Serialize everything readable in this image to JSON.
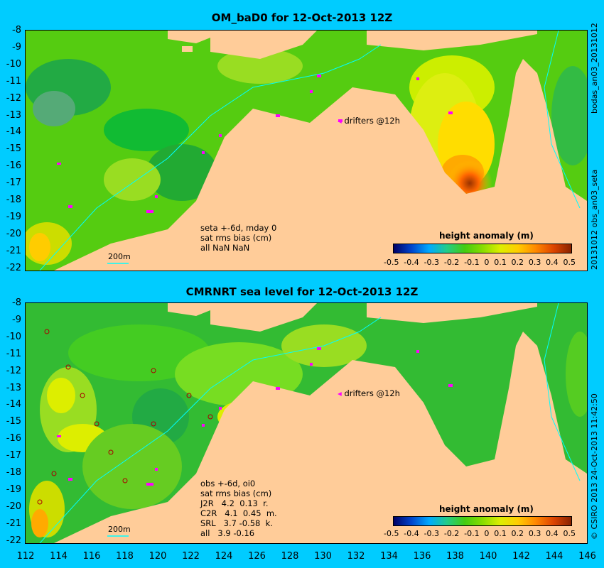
{
  "panel1": {
    "title": "OM_baD0 for 12-Oct-2013 12Z",
    "y_ticks": [
      "-8",
      "-9",
      "-10",
      "-11",
      "-12",
      "-13",
      "-14",
      "-15",
      "-16",
      "-17",
      "-18",
      "-19",
      "-20",
      "-21",
      "-22"
    ],
    "info_lines": [
      "seta +-6d, mday 0",
      "sat rms bias (cm)",
      "all NaN NaN"
    ],
    "drifters_label": "drifters @12h",
    "scale_label": "200m",
    "legend_title": "height anomaly (m)",
    "legend_ticks": [
      "-0.5",
      "-0.4",
      "-0.3",
      "-0.2",
      "-0.1",
      "0",
      "0.1",
      "0.2",
      "0.3",
      "0.4",
      "0.5"
    ],
    "side_top": "bodas_an03_20131012",
    "side_bottom": "20131012 obs_an03_seta"
  },
  "panel2": {
    "title": "CMRNRT sea level  for 12-Oct-2013 12Z",
    "y_ticks": [
      "-8",
      "-9",
      "-10",
      "-11",
      "-12",
      "-13",
      "-14",
      "-15",
      "-16",
      "-17",
      "-18",
      "-19",
      "-20",
      "-21",
      "-22"
    ],
    "info_lines": [
      "obs +-6d, oi0",
      "sat rms bias (cm)",
      "J2R   4.2  0.13  r.",
      "C2R   4.1  0.45  m.",
      "SRL   3.7 -0.58  k.",
      "all   3.9 -0.16"
    ],
    "drifters_label": "drifters @12h",
    "scale_label": "200m",
    "legend_title": "height anomaly (m)",
    "legend_ticks": [
      "-0.5",
      "-0.4",
      "-0.3",
      "-0.2",
      "-0.1",
      "0",
      "0.1",
      "0.2",
      "0.3",
      "0.4",
      "0.5"
    ],
    "side_text": "© CSIRO  2013    24-Oct-2013 11:42:50"
  },
  "x_ticks": [
    "112",
    "114",
    "116",
    "118",
    "120",
    "122",
    "124",
    "126",
    "128",
    "130",
    "132",
    "134",
    "136",
    "138",
    "140",
    "142",
    "144",
    "146"
  ],
  "colors": {
    "background": "#00ccff",
    "land": "#ffcc99",
    "ocean_green": "#44cc11",
    "drifter": "#ff00ff",
    "isobath": "#00ffff"
  }
}
